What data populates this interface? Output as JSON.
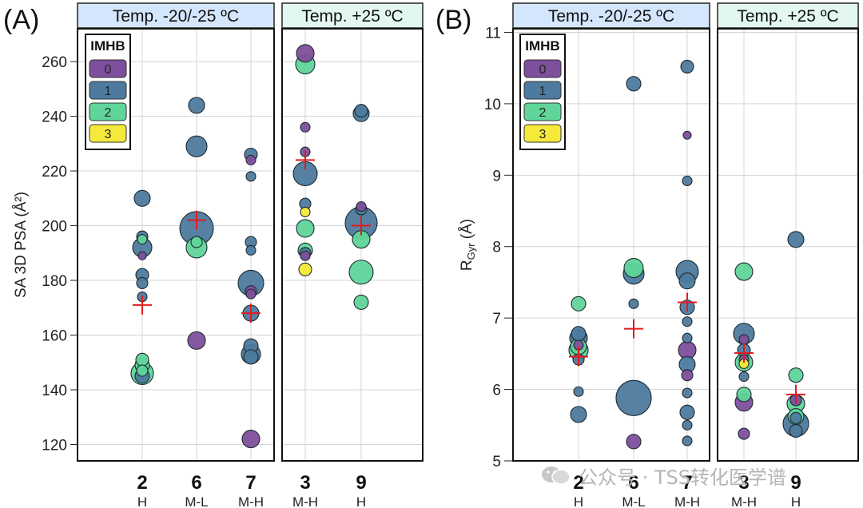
{
  "legend": {
    "title": "IMHB",
    "items": [
      {
        "label": "0",
        "color": "#7e4f9c"
      },
      {
        "label": "1",
        "color": "#4d7a9e"
      },
      {
        "label": "2",
        "color": "#5fd59a"
      },
      {
        "label": "3",
        "color": "#f5e93a"
      }
    ]
  },
  "colors": {
    "mean_marker": "#e31a1c",
    "header_cold": "#d4e6fb",
    "header_warm": "#e2f8ee",
    "grid": "#d4d4d4"
  },
  "watermark": {
    "text": "公众号 · TSS转化医学谱",
    "icon": "wechat-icon"
  },
  "chart_data": [
    {
      "type": "scatter",
      "panel_label": "(A)",
      "ylabel": "SA 3D PSA (Å²)",
      "ylim": [
        114,
        272
      ],
      "yticks": [
        120,
        140,
        160,
        180,
        200,
        220,
        240,
        260
      ],
      "groups": [
        {
          "header": "Temp. -20/-25 ºC",
          "categories": [
            {
              "id": "2",
              "sub": "H"
            },
            {
              "id": "6",
              "sub": "M-L"
            },
            {
              "id": "7",
              "sub": "M-H"
            }
          ]
        },
        {
          "header": "Temp. +25 ºC",
          "categories": [
            {
              "id": "3",
              "sub": "M-H"
            },
            {
              "id": "9",
              "sub": "H"
            }
          ]
        }
      ],
      "means": [
        {
          "cat": "2",
          "y": 171
        },
        {
          "cat": "6",
          "y": 202
        },
        {
          "cat": "7",
          "y": 168
        },
        {
          "cat": "3",
          "y": 224
        },
        {
          "cat": "9",
          "y": 200
        }
      ],
      "points": [
        {
          "cat": "2",
          "y": 210,
          "imhb": 1,
          "r": 10
        },
        {
          "cat": "2",
          "y": 196,
          "imhb": 1,
          "r": 7
        },
        {
          "cat": "2",
          "y": 195,
          "imhb": 2,
          "r": 6
        },
        {
          "cat": "2",
          "y": 192,
          "imhb": 1,
          "r": 12
        },
        {
          "cat": "2",
          "y": 189,
          "imhb": 0,
          "r": 5
        },
        {
          "cat": "2",
          "y": 182,
          "imhb": 1,
          "r": 8
        },
        {
          "cat": "2",
          "y": 179,
          "imhb": 1,
          "r": 7
        },
        {
          "cat": "2",
          "y": 174,
          "imhb": 1,
          "r": 6
        },
        {
          "cat": "2",
          "y": 151,
          "imhb": 2,
          "r": 8
        },
        {
          "cat": "2",
          "y": 149,
          "imhb": 2,
          "r": 9
        },
        {
          "cat": "2",
          "y": 147,
          "imhb": 2,
          "r": 7
        },
        {
          "cat": "2",
          "y": 146,
          "imhb": 2,
          "r": 14
        },
        {
          "cat": "2",
          "y": 145,
          "imhb": 1,
          "r": 9
        },
        {
          "cat": "6",
          "y": 244,
          "imhb": 1,
          "r": 10
        },
        {
          "cat": "6",
          "y": 229,
          "imhb": 1,
          "r": 13
        },
        {
          "cat": "6",
          "y": 199,
          "imhb": 1,
          "r": 21
        },
        {
          "cat": "6",
          "y": 192,
          "imhb": 2,
          "r": 13
        },
        {
          "cat": "6",
          "y": 194,
          "imhb": 2,
          "r": 7
        },
        {
          "cat": "6",
          "y": 158,
          "imhb": 0,
          "r": 11
        },
        {
          "cat": "7",
          "y": 226,
          "imhb": 1,
          "r": 8
        },
        {
          "cat": "7",
          "y": 224,
          "imhb": 0,
          "r": 6
        },
        {
          "cat": "7",
          "y": 218,
          "imhb": 1,
          "r": 6
        },
        {
          "cat": "7",
          "y": 194,
          "imhb": 1,
          "r": 7
        },
        {
          "cat": "7",
          "y": 191,
          "imhb": 1,
          "r": 6
        },
        {
          "cat": "7",
          "y": 179,
          "imhb": 1,
          "r": 16
        },
        {
          "cat": "7",
          "y": 176,
          "imhb": 0,
          "r": 7
        },
        {
          "cat": "7",
          "y": 175,
          "imhb": 0,
          "r": 6
        },
        {
          "cat": "7",
          "y": 168,
          "imhb": 1,
          "r": 10
        },
        {
          "cat": "7",
          "y": 156,
          "imhb": 1,
          "r": 9
        },
        {
          "cat": "7",
          "y": 153,
          "imhb": 1,
          "r": 12
        },
        {
          "cat": "7",
          "y": 152,
          "imhb": 1,
          "r": 9
        },
        {
          "cat": "7",
          "y": 122,
          "imhb": 0,
          "r": 11
        },
        {
          "cat": "3",
          "y": 263,
          "imhb": 0,
          "r": 11
        },
        {
          "cat": "3",
          "y": 259,
          "imhb": 2,
          "r": 12
        },
        {
          "cat": "3",
          "y": 236,
          "imhb": 0,
          "r": 6
        },
        {
          "cat": "3",
          "y": 227,
          "imhb": 0,
          "r": 6
        },
        {
          "cat": "3",
          "y": 219,
          "imhb": 1,
          "r": 15
        },
        {
          "cat": "3",
          "y": 208,
          "imhb": 1,
          "r": 7
        },
        {
          "cat": "3",
          "y": 205,
          "imhb": 3,
          "r": 6
        },
        {
          "cat": "3",
          "y": 199,
          "imhb": 2,
          "r": 11
        },
        {
          "cat": "3",
          "y": 191,
          "imhb": 2,
          "r": 9
        },
        {
          "cat": "3",
          "y": 190,
          "imhb": 1,
          "r": 7
        },
        {
          "cat": "3",
          "y": 189,
          "imhb": 0,
          "r": 6
        },
        {
          "cat": "3",
          "y": 184,
          "imhb": 3,
          "r": 8
        },
        {
          "cat": "9",
          "y": 242,
          "imhb": 1,
          "r": 8
        },
        {
          "cat": "9",
          "y": 241,
          "imhb": 1,
          "r": 10
        },
        {
          "cat": "9",
          "y": 207,
          "imhb": 0,
          "r": 6
        },
        {
          "cat": "9",
          "y": 206,
          "imhb": 1,
          "r": 7
        },
        {
          "cat": "9",
          "y": 201,
          "imhb": 1,
          "r": 20
        },
        {
          "cat": "9",
          "y": 195,
          "imhb": 2,
          "r": 11
        },
        {
          "cat": "9",
          "y": 183,
          "imhb": 2,
          "r": 15
        },
        {
          "cat": "9",
          "y": 172,
          "imhb": 2,
          "r": 9
        }
      ]
    },
    {
      "type": "scatter",
      "panel_label": "(B)",
      "ylabel": "RGyr (Å)",
      "ylabel_main": "R",
      "ylabel_sub": "Gyr",
      "ylabel_unit": " (Å)",
      "ylim": [
        5,
        11.05
      ],
      "yticks": [
        5,
        6,
        7,
        8,
        9,
        10,
        11
      ],
      "groups": [
        {
          "header": "Temp. -20/-25 ºC",
          "categories": [
            {
              "id": "2",
              "sub": "H"
            },
            {
              "id": "6",
              "sub": "M-L"
            },
            {
              "id": "7",
              "sub": "M-H"
            }
          ]
        },
        {
          "header": "Temp. +25 ºC",
          "categories": [
            {
              "id": "3",
              "sub": "M-H"
            },
            {
              "id": "9",
              "sub": "H"
            }
          ]
        }
      ],
      "means": [
        {
          "cat": "2",
          "y": 6.46
        },
        {
          "cat": "6",
          "y": 6.85
        },
        {
          "cat": "7",
          "y": 7.22
        },
        {
          "cat": "3",
          "y": 6.51
        },
        {
          "cat": "9",
          "y": 5.93
        }
      ],
      "points": [
        {
          "cat": "2",
          "y": 7.2,
          "imhb": 2,
          "r": 9
        },
        {
          "cat": "2",
          "y": 6.78,
          "imhb": 1,
          "r": 9
        },
        {
          "cat": "2",
          "y": 6.72,
          "imhb": 1,
          "r": 11
        },
        {
          "cat": "2",
          "y": 6.6,
          "imhb": 2,
          "r": 10
        },
        {
          "cat": "2",
          "y": 6.62,
          "imhb": 0,
          "r": 6
        },
        {
          "cat": "2",
          "y": 6.55,
          "imhb": 2,
          "r": 12
        },
        {
          "cat": "2",
          "y": 6.42,
          "imhb": 1,
          "r": 7
        },
        {
          "cat": "2",
          "y": 5.97,
          "imhb": 1,
          "r": 6
        },
        {
          "cat": "2",
          "y": 5.65,
          "imhb": 1,
          "r": 10
        },
        {
          "cat": "6",
          "y": 10.28,
          "imhb": 1,
          "r": 9
        },
        {
          "cat": "6",
          "y": 7.7,
          "imhb": 2,
          "r": 12
        },
        {
          "cat": "6",
          "y": 7.62,
          "imhb": 1,
          "r": 13
        },
        {
          "cat": "6",
          "y": 7.2,
          "imhb": 1,
          "r": 6
        },
        {
          "cat": "6",
          "y": 5.88,
          "imhb": 1,
          "r": 22
        },
        {
          "cat": "6",
          "y": 5.27,
          "imhb": 0,
          "r": 9
        },
        {
          "cat": "7",
          "y": 10.52,
          "imhb": 1,
          "r": 8
        },
        {
          "cat": "7",
          "y": 9.56,
          "imhb": 0,
          "r": 5
        },
        {
          "cat": "7",
          "y": 8.92,
          "imhb": 1,
          "r": 6
        },
        {
          "cat": "7",
          "y": 7.65,
          "imhb": 1,
          "r": 14
        },
        {
          "cat": "7",
          "y": 7.52,
          "imhb": 1,
          "r": 10
        },
        {
          "cat": "7",
          "y": 7.15,
          "imhb": 1,
          "r": 9
        },
        {
          "cat": "7",
          "y": 6.95,
          "imhb": 1,
          "r": 6
        },
        {
          "cat": "7",
          "y": 6.72,
          "imhb": 1,
          "r": 6
        },
        {
          "cat": "7",
          "y": 6.55,
          "imhb": 0,
          "r": 11
        },
        {
          "cat": "7",
          "y": 6.35,
          "imhb": 1,
          "r": 10
        },
        {
          "cat": "7",
          "y": 6.2,
          "imhb": 0,
          "r": 7
        },
        {
          "cat": "7",
          "y": 5.95,
          "imhb": 1,
          "r": 6
        },
        {
          "cat": "7",
          "y": 5.68,
          "imhb": 1,
          "r": 9
        },
        {
          "cat": "7",
          "y": 5.5,
          "imhb": 1,
          "r": 6
        },
        {
          "cat": "7",
          "y": 5.28,
          "imhb": 1,
          "r": 6
        },
        {
          "cat": "3",
          "y": 7.65,
          "imhb": 2,
          "r": 11
        },
        {
          "cat": "3",
          "y": 6.78,
          "imhb": 1,
          "r": 13
        },
        {
          "cat": "3",
          "y": 6.7,
          "imhb": 0,
          "r": 6
        },
        {
          "cat": "3",
          "y": 6.55,
          "imhb": 1,
          "r": 8
        },
        {
          "cat": "3",
          "y": 6.42,
          "imhb": 0,
          "r": 6
        },
        {
          "cat": "3",
          "y": 6.38,
          "imhb": 2,
          "r": 11
        },
        {
          "cat": "3",
          "y": 6.36,
          "imhb": 3,
          "r": 6
        },
        {
          "cat": "3",
          "y": 6.18,
          "imhb": 1,
          "r": 6
        },
        {
          "cat": "3",
          "y": 5.93,
          "imhb": 2,
          "r": 9
        },
        {
          "cat": "3",
          "y": 5.82,
          "imhb": 0,
          "r": 11
        },
        {
          "cat": "3",
          "y": 5.38,
          "imhb": 0,
          "r": 7
        },
        {
          "cat": "9",
          "y": 8.1,
          "imhb": 1,
          "r": 10
        },
        {
          "cat": "9",
          "y": 6.2,
          "imhb": 2,
          "r": 9
        },
        {
          "cat": "9",
          "y": 5.85,
          "imhb": 0,
          "r": 7
        },
        {
          "cat": "9",
          "y": 5.8,
          "imhb": 2,
          "r": 11
        },
        {
          "cat": "9",
          "y": 5.62,
          "imhb": 2,
          "r": 10
        },
        {
          "cat": "9",
          "y": 5.6,
          "imhb": 1,
          "r": 7
        },
        {
          "cat": "9",
          "y": 5.52,
          "imhb": 1,
          "r": 16
        },
        {
          "cat": "9",
          "y": 5.42,
          "imhb": 1,
          "r": 8
        }
      ]
    }
  ]
}
